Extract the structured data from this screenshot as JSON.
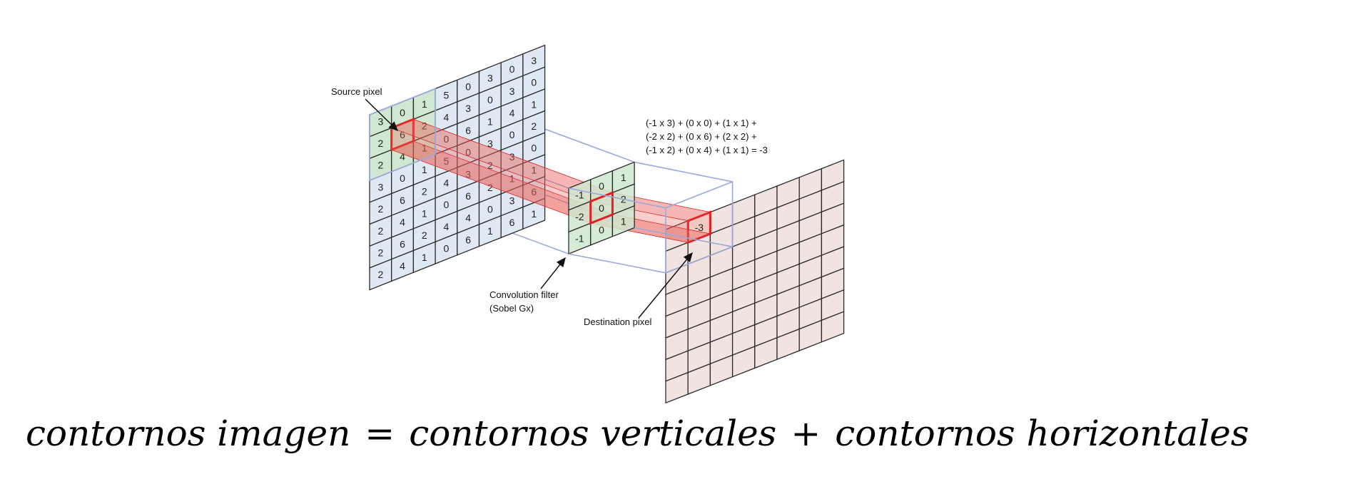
{
  "source_grid": [
    [
      "3",
      "0",
      "1",
      "5",
      "0",
      "3",
      "0",
      "3"
    ],
    [
      "2",
      "6",
      "2",
      "4",
      "3",
      "0",
      "3",
      "0"
    ],
    [
      "2",
      "4",
      "1",
      "0",
      "6",
      "1",
      "4",
      "1"
    ],
    [
      "3",
      "0",
      "1",
      "5",
      "0",
      "3",
      "0",
      "2"
    ],
    [
      "2",
      "6",
      "2",
      "4",
      "3",
      "2",
      "3",
      "0"
    ],
    [
      "2",
      "4",
      "1",
      "0",
      "6",
      "2",
      "1",
      "1"
    ],
    [
      "2",
      "6",
      "2",
      "4",
      "4",
      "0",
      "3",
      "6"
    ],
    [
      "2",
      "4",
      "1",
      "0",
      "6",
      "1",
      "6",
      "1"
    ]
  ],
  "filter_grid": [
    [
      "-1",
      "0",
      "1"
    ],
    [
      "-2",
      "0",
      "2"
    ],
    [
      "-1",
      "0",
      "1"
    ]
  ],
  "destination_value": "-3",
  "labels": {
    "source_pixel": "Source pixel",
    "filter_line1": "Convolution filter",
    "filter_line2": "(Sobel Gx)",
    "destination_pixel": "Destination pixel"
  },
  "formula": [
    "(-1 x 3) + (0 x 0) + (1 x 1) +",
    "(-2 x 2) + (0 x 6) + (2 x 2) +",
    "(-1 x 2) + (0 x 4) + (1 x 1)  = -3"
  ],
  "equation": {
    "lhs": "contornos imagen",
    "eq": "=",
    "term1": "contornos verticales",
    "plus": "+",
    "term2": "contornos horizontales"
  },
  "colors": {
    "source_fill": "#dfe9f3",
    "window_fill": "#cfe8cf",
    "dest_fill": "#f1e3e0",
    "grid_stroke": "#2b2b2b",
    "highlight": "#e02020",
    "projection_red": "#e8605a",
    "projection_blue": "#9aa8de"
  }
}
